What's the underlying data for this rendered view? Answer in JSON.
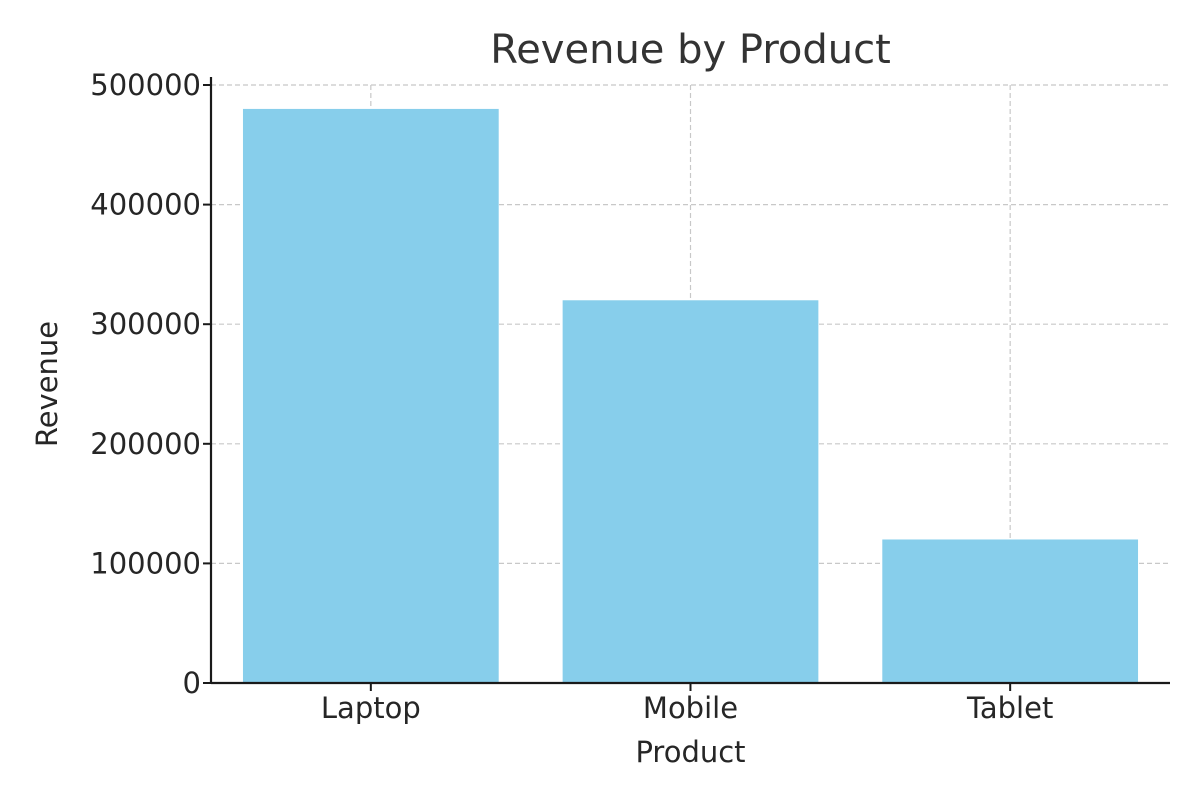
{
  "chart_data": {
    "type": "bar",
    "title": "Revenue by Product",
    "xlabel": "Product",
    "ylabel": "Revenue",
    "categories": [
      "Laptop",
      "Mobile",
      "Tablet"
    ],
    "values": [
      480000,
      320000,
      120000
    ],
    "ylim": [
      0,
      500000
    ],
    "yticks": [
      0,
      100000,
      200000,
      300000,
      400000,
      500000
    ],
    "grid": true,
    "bar_color": "#87CEEB"
  }
}
